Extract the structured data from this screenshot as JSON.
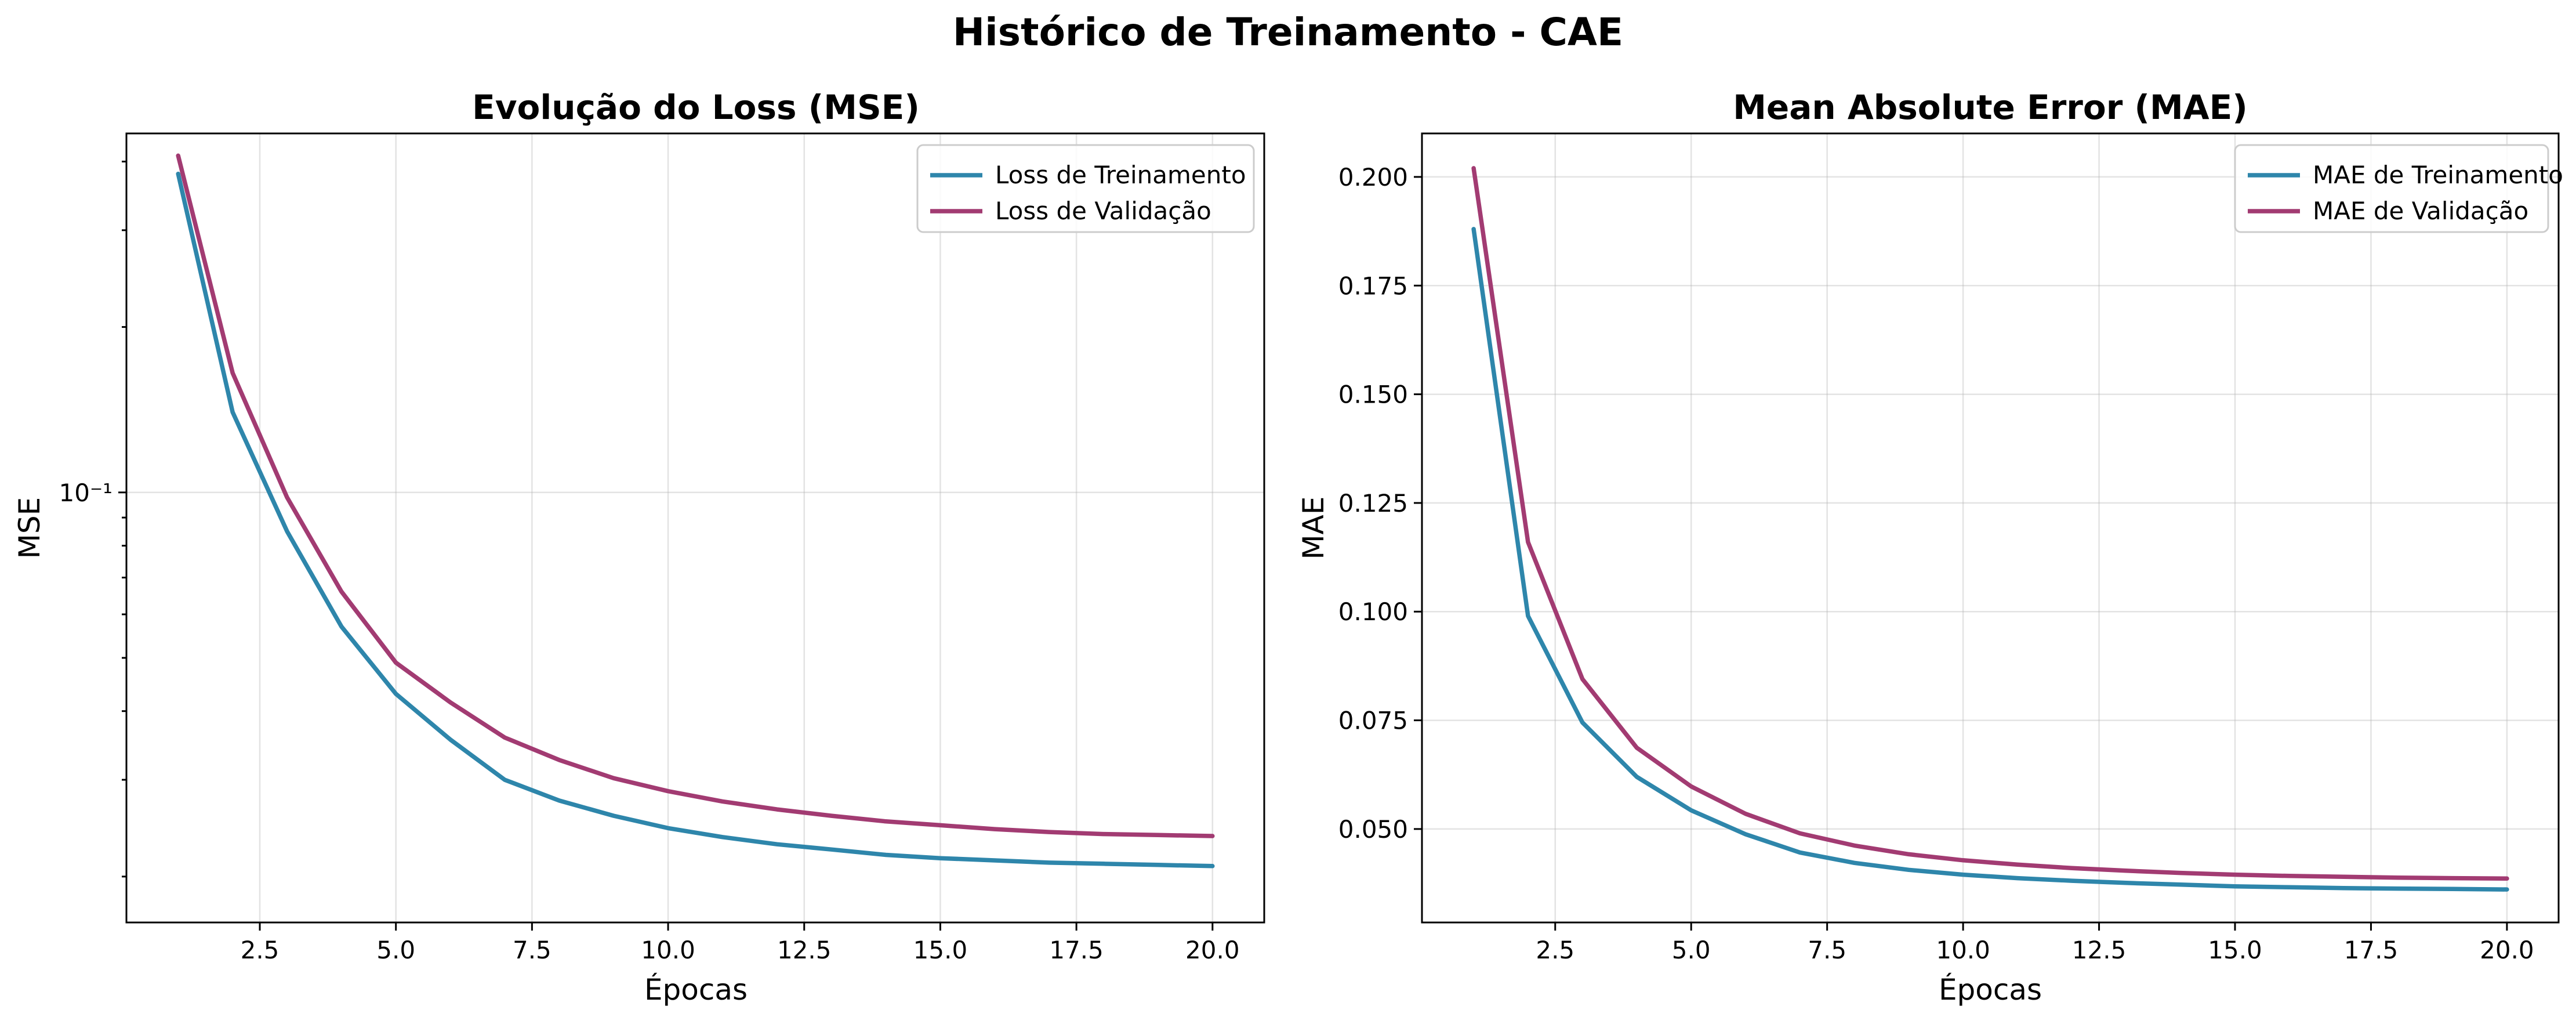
{
  "suptitle": "Histórico de Treinamento - CAE",
  "colors": {
    "train": "#2e86ab",
    "val": "#a23b72"
  },
  "chart_data": [
    {
      "type": "line",
      "title": "Evolução do Loss (MSE)",
      "xlabel": "Épocas",
      "ylabel": "MSE",
      "yscale": "log",
      "xlim": [
        0.05,
        20.95
      ],
      "ylim": [
        0.0165,
        0.45
      ],
      "xticks": [
        2.5,
        5.0,
        7.5,
        10.0,
        12.5,
        15.0,
        17.5,
        20.0
      ],
      "xtick_labels": [
        "2.5",
        "5.0",
        "7.5",
        "10.0",
        "12.5",
        "15.0",
        "17.5",
        "20.0"
      ],
      "yticks": [
        0.1
      ],
      "ytick_labels": [
        "10⁻¹"
      ],
      "grid": true,
      "legend_position": "top-right",
      "x": [
        1,
        2,
        3,
        4,
        5,
        6,
        7,
        8,
        9,
        10,
        11,
        12,
        13,
        14,
        15,
        16,
        17,
        18,
        19,
        20
      ],
      "series": [
        {
          "name": "Loss de Treinamento",
          "values": [
            0.38,
            0.14,
            0.085,
            0.057,
            0.043,
            0.0355,
            0.03,
            0.0275,
            0.0258,
            0.0245,
            0.0236,
            0.0229,
            0.0224,
            0.0219,
            0.0216,
            0.0214,
            0.0212,
            0.0211,
            0.021,
            0.0209
          ]
        },
        {
          "name": "Loss de Validação",
          "values": [
            0.41,
            0.165,
            0.098,
            0.066,
            0.049,
            0.0415,
            0.0358,
            0.0326,
            0.0302,
            0.0286,
            0.0274,
            0.0265,
            0.0258,
            0.0252,
            0.0248,
            0.0244,
            0.0241,
            0.0239,
            0.0238,
            0.0237
          ]
        }
      ]
    },
    {
      "type": "line",
      "title": "Mean Absolute Error (MAE)",
      "xlabel": "Épocas",
      "ylabel": "MAE",
      "yscale": "linear",
      "xlim": [
        0.05,
        20.95
      ],
      "ylim": [
        0.0285,
        0.21
      ],
      "xticks": [
        2.5,
        5.0,
        7.5,
        10.0,
        12.5,
        15.0,
        17.5,
        20.0
      ],
      "xtick_labels": [
        "2.5",
        "5.0",
        "7.5",
        "10.0",
        "12.5",
        "15.0",
        "17.5",
        "20.0"
      ],
      "yticks": [
        0.05,
        0.075,
        0.1,
        0.125,
        0.15,
        0.175,
        0.2
      ],
      "ytick_labels": [
        "0.050",
        "0.075",
        "0.100",
        "0.125",
        "0.150",
        "0.175",
        "0.200"
      ],
      "grid": true,
      "legend_position": "top-right",
      "x": [
        1,
        2,
        3,
        4,
        5,
        6,
        7,
        8,
        9,
        10,
        11,
        12,
        13,
        14,
        15,
        16,
        17,
        18,
        19,
        20
      ],
      "series": [
        {
          "name": "MAE de Treinamento",
          "values": [
            0.188,
            0.099,
            0.0745,
            0.062,
            0.0543,
            0.0488,
            0.0446,
            0.0422,
            0.0406,
            0.0395,
            0.0387,
            0.0381,
            0.0376,
            0.0372,
            0.0368,
            0.0366,
            0.0364,
            0.0363,
            0.0362,
            0.0361
          ]
        },
        {
          "name": "MAE de Validação",
          "values": [
            0.202,
            0.116,
            0.0845,
            0.0687,
            0.0598,
            0.0535,
            0.049,
            0.0462,
            0.0442,
            0.0428,
            0.0418,
            0.041,
            0.0404,
            0.0399,
            0.0395,
            0.0392,
            0.039,
            0.0388,
            0.0387,
            0.0386
          ]
        }
      ]
    }
  ]
}
